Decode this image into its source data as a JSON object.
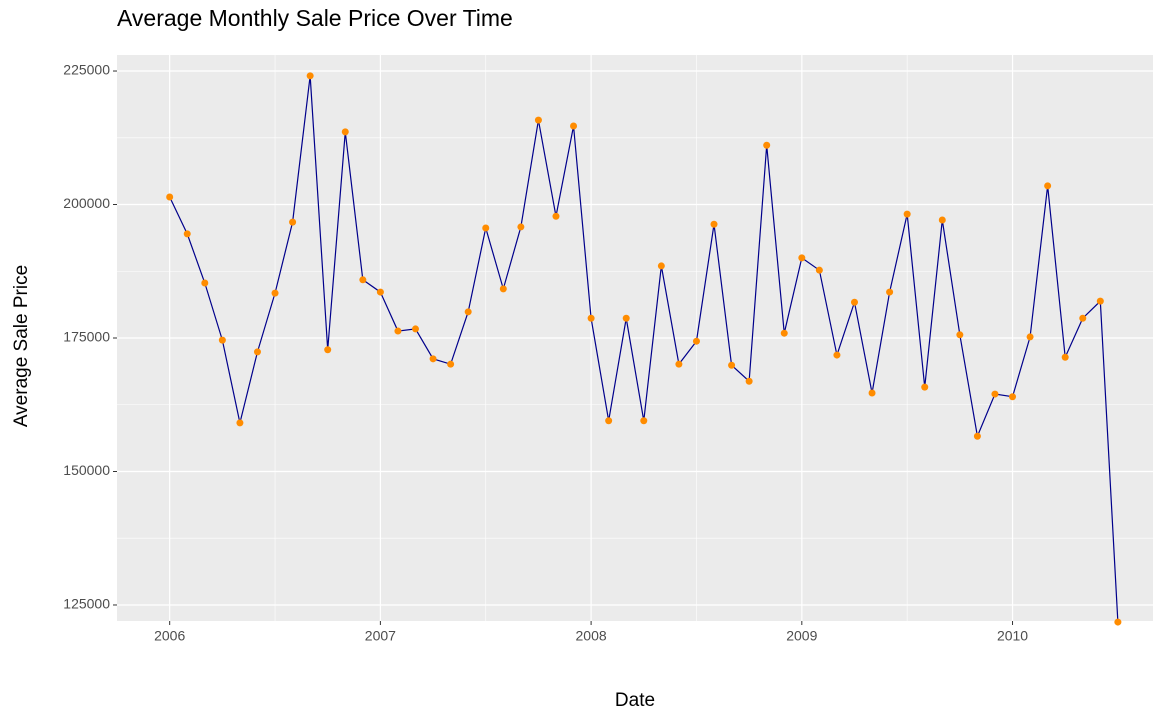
{
  "chart_data": {
    "type": "line",
    "title": "Average Monthly Sale Price Over Time",
    "x_label": "Date",
    "y_label": "Average Sale Price",
    "x": [
      "2006-01",
      "2006-02",
      "2006-03",
      "2006-04",
      "2006-05",
      "2006-06",
      "2006-07",
      "2006-08",
      "2006-09",
      "2006-10",
      "2006-11",
      "2006-12",
      "2007-01",
      "2007-02",
      "2007-03",
      "2007-04",
      "2007-05",
      "2007-06",
      "2007-07",
      "2007-08",
      "2007-09",
      "2007-10",
      "2007-11",
      "2007-12",
      "2008-01",
      "2008-02",
      "2008-03",
      "2008-04",
      "2008-05",
      "2008-06",
      "2008-07",
      "2008-08",
      "2008-09",
      "2008-10",
      "2008-11",
      "2008-12",
      "2009-01",
      "2009-02",
      "2009-03",
      "2009-04",
      "2009-05",
      "2009-06",
      "2009-07",
      "2009-08",
      "2009-09",
      "2009-10",
      "2009-11",
      "2009-12",
      "2010-01",
      "2010-02",
      "2010-03",
      "2010-04",
      "2010-05",
      "2010-06",
      "2010-07"
    ],
    "series": [
      {
        "name": "Average Sale Price",
        "color": "#00008b",
        "point_color": "#ff8c00",
        "values": [
          201400,
          194500,
          185300,
          174600,
          159100,
          172400,
          183400,
          196700,
          224100,
          172800,
          213600,
          185900,
          183600,
          176300,
          176700,
          171100,
          170100,
          179900,
          195600,
          184200,
          195800,
          215800,
          197800,
          214700,
          178700,
          159500,
          178700,
          159500,
          188500,
          170100,
          174400,
          196300,
          169900,
          166900,
          211100,
          175900,
          190000,
          187700,
          171800,
          181700,
          164700,
          183600,
          198200,
          165800,
          197100,
          175600,
          156600,
          164500,
          164000,
          175200,
          203500,
          171400,
          178700,
          181900,
          121800
        ]
      }
    ],
    "xlim": [
      "2005-10",
      "2010-09"
    ],
    "xticks": [
      {
        "value": "2006-01",
        "label": "2006"
      },
      {
        "value": "2007-01",
        "label": "2007"
      },
      {
        "value": "2008-01",
        "label": "2008"
      },
      {
        "value": "2009-01",
        "label": "2009"
      },
      {
        "value": "2010-01",
        "label": "2010"
      }
    ],
    "xminorticks": [
      "2006-07",
      "2007-07",
      "2008-07",
      "2009-07"
    ],
    "ylim": [
      122000,
      228000
    ],
    "yticks": [
      125000,
      150000,
      175000,
      200000,
      225000
    ],
    "yminorticks": [
      137500,
      162500,
      187500,
      212500
    ],
    "grid": true
  }
}
